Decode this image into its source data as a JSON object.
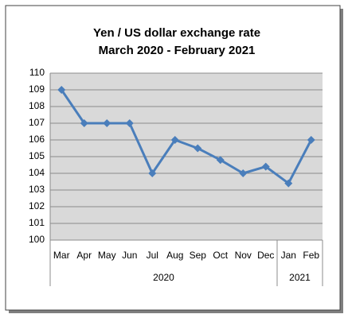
{
  "chart_data": {
    "type": "line",
    "title": "Yen / US dollar exchange rate",
    "subtitle": "March 2020 - February 2021",
    "categories": [
      "Mar",
      "Apr",
      "May",
      "Jun",
      "Jul",
      "Aug",
      "Sep",
      "Oct",
      "Nov",
      "Dec",
      "Jan",
      "Feb"
    ],
    "category_groups": [
      {
        "label": "2020",
        "count": 10
      },
      {
        "label": "2021",
        "count": 2
      }
    ],
    "values": [
      109,
      107,
      107,
      107,
      104,
      106,
      105.5,
      104.8,
      104,
      104.4,
      103.4,
      106
    ],
    "color": "#4a7ebb",
    "ylim": [
      100,
      110
    ],
    "yticks": [
      100,
      101,
      102,
      103,
      104,
      105,
      106,
      107,
      108,
      109,
      110
    ],
    "grid": true
  }
}
